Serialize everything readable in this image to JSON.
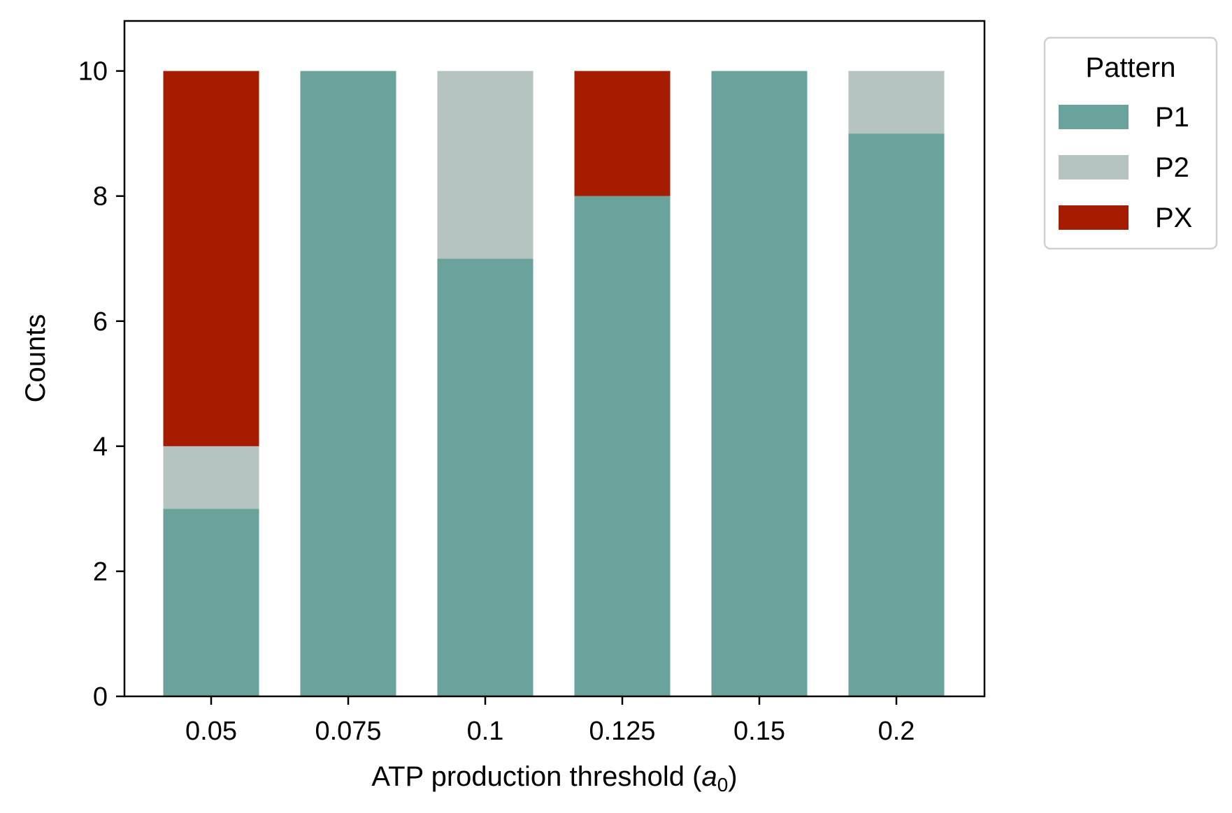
{
  "chart_data": {
    "type": "bar",
    "stacked": true,
    "categories": [
      "0.05",
      "0.075",
      "0.1",
      "0.125",
      "0.15",
      "0.2"
    ],
    "series": [
      {
        "name": "P1",
        "color": "#6aa29c",
        "values": [
          3,
          10,
          7,
          8,
          10,
          9
        ]
      },
      {
        "name": "P2",
        "color": "#b5c4c0",
        "values": [
          1,
          0,
          3,
          0,
          0,
          1
        ]
      },
      {
        "name": "PX",
        "color": "#a51c00",
        "values": [
          6,
          0,
          0,
          2,
          0,
          0
        ]
      }
    ],
    "xlabel_main": "ATP production threshold (",
    "xlabel_symbol": "a",
    "xlabel_subscript": "0",
    "xlabel_close": ")",
    "ylabel": "Counts",
    "ylim": [
      0,
      10.8
    ],
    "yticks": [
      "0",
      "2",
      "4",
      "6",
      "8",
      "10"
    ],
    "legend_title": "Pattern",
    "legend_position": "outside-right-top",
    "grid": false
  }
}
